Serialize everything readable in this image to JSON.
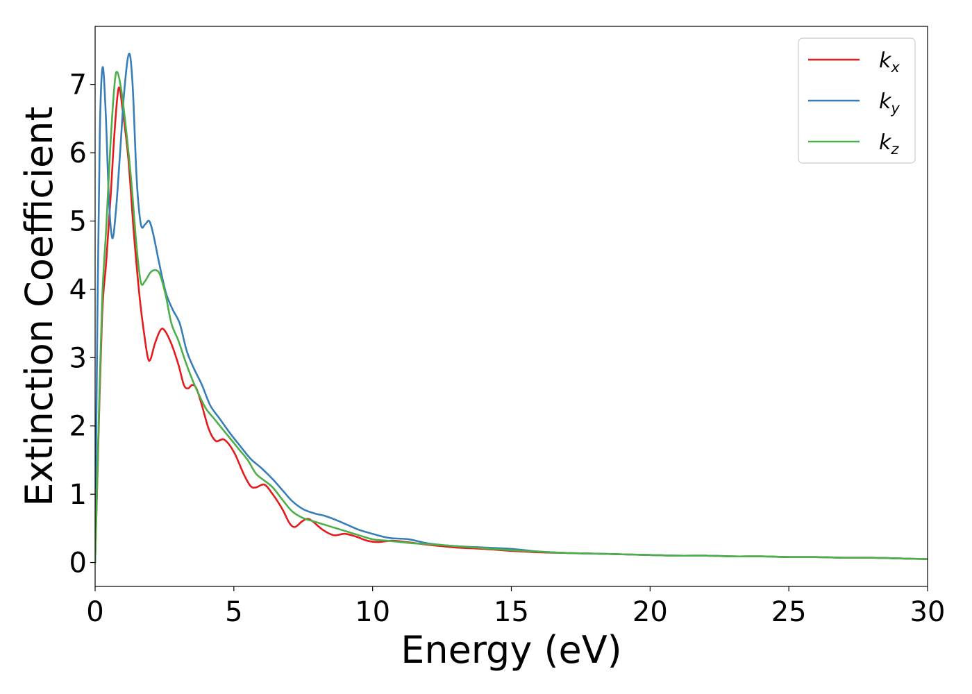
{
  "chart_data": {
    "type": "line",
    "title": "",
    "xlabel": "Energy (eV)",
    "ylabel": "Extinction Coefficient",
    "xlim": [
      0,
      30
    ],
    "ylim": [
      -0.35,
      7.85
    ],
    "xticks": [
      0,
      5,
      10,
      15,
      20,
      25,
      30
    ],
    "yticks": [
      0,
      1,
      2,
      3,
      4,
      5,
      6,
      7
    ],
    "xtick_labels": [
      "0",
      "5",
      "10",
      "15",
      "20",
      "25",
      "30"
    ],
    "ytick_labels": [
      "0",
      "1",
      "2",
      "3",
      "4",
      "5",
      "6",
      "7"
    ],
    "grid": false,
    "legend_position": "top-right",
    "series": [
      {
        "name": "k_x",
        "legend_base": "k",
        "legend_sub": "x",
        "color": "#e41a1c",
        "points": [
          [
            0,
            0
          ],
          [
            0.1,
            1.5
          ],
          [
            0.25,
            3.6
          ],
          [
            0.4,
            4.4
          ],
          [
            0.55,
            5.3
          ],
          [
            0.7,
            6.3
          ],
          [
            0.85,
            6.95
          ],
          [
            1.0,
            6.6
          ],
          [
            1.2,
            5.9
          ],
          [
            1.4,
            4.8
          ],
          [
            1.6,
            3.9
          ],
          [
            1.75,
            3.4
          ],
          [
            1.9,
            3.0
          ],
          [
            2.0,
            2.98
          ],
          [
            2.15,
            3.2
          ],
          [
            2.35,
            3.4
          ],
          [
            2.5,
            3.4
          ],
          [
            2.75,
            3.2
          ],
          [
            3.0,
            2.9
          ],
          [
            3.2,
            2.6
          ],
          [
            3.35,
            2.55
          ],
          [
            3.5,
            2.6
          ],
          [
            3.65,
            2.55
          ],
          [
            3.85,
            2.3
          ],
          [
            4.1,
            1.95
          ],
          [
            4.35,
            1.78
          ],
          [
            4.65,
            1.8
          ],
          [
            5.0,
            1.62
          ],
          [
            5.35,
            1.3
          ],
          [
            5.6,
            1.12
          ],
          [
            5.8,
            1.1
          ],
          [
            6.1,
            1.14
          ],
          [
            6.4,
            1.0
          ],
          [
            6.75,
            0.78
          ],
          [
            7.0,
            0.58
          ],
          [
            7.2,
            0.52
          ],
          [
            7.45,
            0.6
          ],
          [
            7.65,
            0.64
          ],
          [
            7.85,
            0.6
          ],
          [
            8.2,
            0.48
          ],
          [
            8.6,
            0.4
          ],
          [
            9.0,
            0.42
          ],
          [
            9.4,
            0.38
          ],
          [
            9.8,
            0.32
          ],
          [
            10.2,
            0.3
          ],
          [
            10.7,
            0.32
          ],
          [
            11.2,
            0.3
          ],
          [
            11.6,
            0.28
          ],
          [
            12.0,
            0.26
          ],
          [
            12.5,
            0.24
          ],
          [
            13.0,
            0.22
          ],
          [
            14.0,
            0.2
          ],
          [
            15.0,
            0.17
          ],
          [
            16.0,
            0.15
          ],
          [
            17.0,
            0.14
          ],
          [
            18.0,
            0.13
          ],
          [
            19.0,
            0.12
          ],
          [
            20.0,
            0.11
          ],
          [
            21.0,
            0.1
          ],
          [
            22.0,
            0.1
          ],
          [
            23.0,
            0.09
          ],
          [
            24.0,
            0.09
          ],
          [
            25.0,
            0.08
          ],
          [
            26.0,
            0.08
          ],
          [
            27.0,
            0.07
          ],
          [
            28.0,
            0.07
          ],
          [
            29.0,
            0.06
          ],
          [
            30.0,
            0.05
          ]
        ]
      },
      {
        "name": "k_y",
        "legend_base": "k",
        "legend_sub": "y",
        "color": "#377eb8",
        "points": [
          [
            0,
            0
          ],
          [
            0.08,
            3.5
          ],
          [
            0.17,
            6.3
          ],
          [
            0.27,
            7.25
          ],
          [
            0.38,
            6.6
          ],
          [
            0.5,
            5.3
          ],
          [
            0.62,
            4.75
          ],
          [
            0.75,
            5.15
          ],
          [
            0.9,
            6.0
          ],
          [
            1.05,
            6.9
          ],
          [
            1.22,
            7.45
          ],
          [
            1.35,
            7.0
          ],
          [
            1.5,
            5.6
          ],
          [
            1.65,
            4.95
          ],
          [
            1.8,
            4.95
          ],
          [
            1.95,
            5.0
          ],
          [
            2.1,
            4.8
          ],
          [
            2.3,
            4.4
          ],
          [
            2.55,
            3.95
          ],
          [
            2.8,
            3.7
          ],
          [
            3.05,
            3.5
          ],
          [
            3.3,
            3.1
          ],
          [
            3.55,
            2.85
          ],
          [
            3.85,
            2.6
          ],
          [
            4.15,
            2.3
          ],
          [
            4.5,
            2.1
          ],
          [
            4.85,
            1.9
          ],
          [
            5.2,
            1.72
          ],
          [
            5.6,
            1.52
          ],
          [
            6.0,
            1.38
          ],
          [
            6.4,
            1.22
          ],
          [
            6.75,
            1.06
          ],
          [
            7.1,
            0.9
          ],
          [
            7.5,
            0.78
          ],
          [
            7.9,
            0.72
          ],
          [
            8.3,
            0.68
          ],
          [
            8.7,
            0.62
          ],
          [
            9.1,
            0.55
          ],
          [
            9.5,
            0.48
          ],
          [
            10.0,
            0.42
          ],
          [
            10.6,
            0.36
          ],
          [
            11.3,
            0.34
          ],
          [
            12.0,
            0.28
          ],
          [
            13.0,
            0.24
          ],
          [
            14.0,
            0.22
          ],
          [
            15.0,
            0.2
          ],
          [
            16.0,
            0.16
          ],
          [
            17.0,
            0.14
          ],
          [
            18.0,
            0.13
          ],
          [
            19.0,
            0.12
          ],
          [
            20.0,
            0.11
          ],
          [
            21.0,
            0.1
          ],
          [
            22.0,
            0.1
          ],
          [
            23.0,
            0.09
          ],
          [
            24.0,
            0.09
          ],
          [
            25.0,
            0.08
          ],
          [
            26.0,
            0.08
          ],
          [
            27.0,
            0.07
          ],
          [
            28.0,
            0.07
          ],
          [
            29.0,
            0.06
          ],
          [
            30.0,
            0.05
          ]
        ]
      },
      {
        "name": "k_z",
        "legend_base": "k",
        "legend_sub": "z",
        "color": "#4daf4a",
        "points": [
          [
            0,
            0
          ],
          [
            0.1,
            1.6
          ],
          [
            0.25,
            3.8
          ],
          [
            0.4,
            4.9
          ],
          [
            0.55,
            6.1
          ],
          [
            0.7,
            7.0
          ],
          [
            0.8,
            7.18
          ],
          [
            0.95,
            6.9
          ],
          [
            1.1,
            6.4
          ],
          [
            1.3,
            5.6
          ],
          [
            1.5,
            4.6
          ],
          [
            1.65,
            4.1
          ],
          [
            1.8,
            4.12
          ],
          [
            2.0,
            4.25
          ],
          [
            2.2,
            4.28
          ],
          [
            2.35,
            4.2
          ],
          [
            2.55,
            3.9
          ],
          [
            2.75,
            3.5
          ],
          [
            3.0,
            3.25
          ],
          [
            3.25,
            2.95
          ],
          [
            3.5,
            2.68
          ],
          [
            3.75,
            2.45
          ],
          [
            4.0,
            2.25
          ],
          [
            4.3,
            2.1
          ],
          [
            4.6,
            1.95
          ],
          [
            4.9,
            1.8
          ],
          [
            5.2,
            1.65
          ],
          [
            5.5,
            1.5
          ],
          [
            5.8,
            1.3
          ],
          [
            6.1,
            1.2
          ],
          [
            6.4,
            1.1
          ],
          [
            6.75,
            0.92
          ],
          [
            7.1,
            0.75
          ],
          [
            7.5,
            0.65
          ],
          [
            7.9,
            0.6
          ],
          [
            8.3,
            0.55
          ],
          [
            8.7,
            0.5
          ],
          [
            9.1,
            0.45
          ],
          [
            9.5,
            0.4
          ],
          [
            10.0,
            0.34
          ],
          [
            10.5,
            0.32
          ],
          [
            11.0,
            0.3
          ],
          [
            11.5,
            0.28
          ],
          [
            12.0,
            0.27
          ],
          [
            13.0,
            0.24
          ],
          [
            14.0,
            0.21
          ],
          [
            15.0,
            0.18
          ],
          [
            16.0,
            0.16
          ],
          [
            17.0,
            0.14
          ],
          [
            18.0,
            0.13
          ],
          [
            19.0,
            0.12
          ],
          [
            20.0,
            0.11
          ],
          [
            21.0,
            0.1
          ],
          [
            22.0,
            0.1
          ],
          [
            23.0,
            0.09
          ],
          [
            24.0,
            0.09
          ],
          [
            25.0,
            0.08
          ],
          [
            26.0,
            0.08
          ],
          [
            27.0,
            0.07
          ],
          [
            28.0,
            0.07
          ],
          [
            29.0,
            0.06
          ],
          [
            30.0,
            0.05
          ]
        ]
      }
    ]
  }
}
